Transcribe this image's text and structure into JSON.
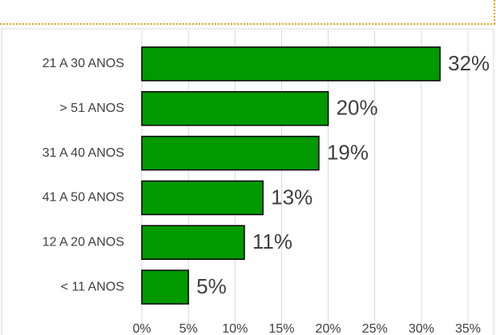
{
  "chart_data": {
    "type": "bar",
    "orientation": "horizontal",
    "categories": [
      "21 A 30 ANOS",
      "> 51 ANOS",
      "31 A 40 ANOS",
      "41 A 50 ANOS",
      "12 A 20 ANOS",
      "< 11 ANOS"
    ],
    "values": [
      32,
      20,
      19,
      13,
      11,
      5
    ],
    "value_labels": [
      "32%",
      "20%",
      "19%",
      "13%",
      "11%",
      "5%"
    ],
    "color": "#009900",
    "xlim": [
      0,
      35
    ],
    "xticks": [
      {
        "value": 0,
        "label": "0%"
      },
      {
        "value": 5,
        "label": "5%"
      },
      {
        "value": 10,
        "label": "10%"
      },
      {
        "value": 15,
        "label": "15%"
      },
      {
        "value": 20,
        "label": "20%"
      },
      {
        "value": 25,
        "label": "25%"
      },
      {
        "value": 30,
        "label": "30%"
      },
      {
        "value": 35,
        "label": "35%"
      }
    ],
    "grid": true
  }
}
